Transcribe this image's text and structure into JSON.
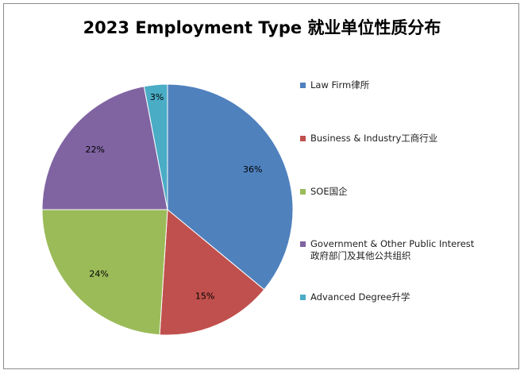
{
  "chart_data": {
    "type": "pie",
    "title": "2023 Employment Type 就业单位性质分布",
    "categories": [
      "Law Firm律所",
      "Business & Industry工商行业",
      "SOE国企",
      "Government  & Other Public Interest\n政府部门及其他公共组织",
      "Advanced Degree升学"
    ],
    "values": [
      36,
      15,
      24,
      22,
      3
    ],
    "value_labels": [
      "36%",
      "15%",
      "24%",
      "22%",
      "3%"
    ],
    "colors": [
      "#4f81bd",
      "#c0504d",
      "#9bbb59",
      "#8064a2",
      "#4bacc6"
    ],
    "legend_position": "right",
    "start_angle": "12 o'clock",
    "direction": "clockwise"
  }
}
